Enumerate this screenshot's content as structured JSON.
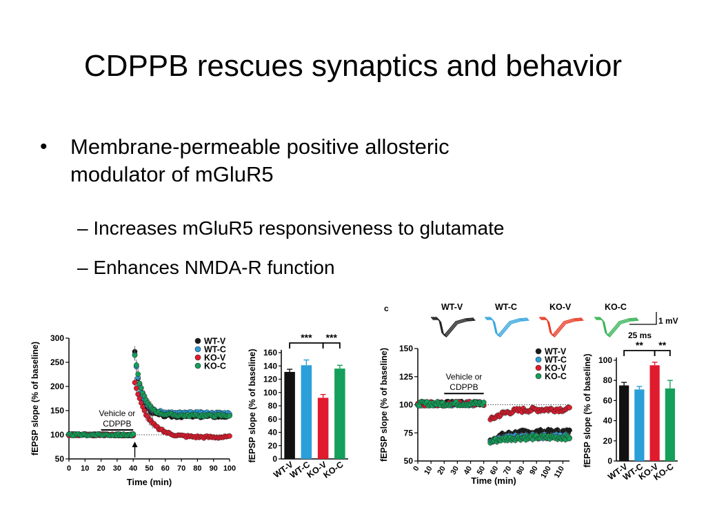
{
  "slide": {
    "title": "CDPPB rescues synaptics and behavior",
    "bullets": [
      {
        "text": "Membrane-permeable positive allosteric modulator of mGluR5",
        "line1": "Membrane-permeable positive allosteric",
        "line2": "modulator of mGluR5",
        "subs": [
          "Increases mGluR5 responsiveness to glutamate",
          "Enhances NMDA-R function"
        ]
      }
    ],
    "bullet_glyph": "•",
    "dash_glyph": "–"
  },
  "figure": {
    "panel_c_label": "c",
    "traces": {
      "labels": [
        "WT-V",
        "WT-C",
        "KO-V",
        "KO-C"
      ],
      "colors": [
        "#222222",
        "#3aa7dd",
        "#e8402a",
        "#3cb55a"
      ],
      "scale_voltage": "1 mV",
      "scale_time": "25 ms"
    },
    "groups": [
      "WT-V",
      "WT-C",
      "KO-V",
      "KO-C"
    ],
    "group_colors": [
      "#111111",
      "#2a9fd8",
      "#e01b2e",
      "#14a05a"
    ]
  },
  "chart_data": [
    {
      "type": "scatter",
      "ylabel": "fEPSP slope (% of baseline)",
      "xlabel": "Time (min)",
      "xlim": [
        0,
        100
      ],
      "ylim": [
        50,
        300
      ],
      "xticks": [
        0,
        10,
        20,
        30,
        40,
        50,
        60,
        70,
        80,
        90,
        100
      ],
      "yticks": [
        50,
        100,
        150,
        200,
        250,
        300
      ],
      "annotation": "Vehicle or CDPPB",
      "drug_window": [
        20,
        40
      ],
      "stimulus_x": 41,
      "baseline": 100,
      "legend": "top-right",
      "series": [
        {
          "name": "WT-V",
          "color": "#1a1a1a",
          "baseline": 100,
          "peak": 270,
          "steady": 138,
          "tau": 4
        },
        {
          "name": "WT-C",
          "color": "#2a9fd8",
          "baseline": 100,
          "peak": 268,
          "steady": 145,
          "tau": 4
        },
        {
          "name": "KO-V",
          "color": "#e01b2e",
          "baseline": 100,
          "peak": 210,
          "steady": 95,
          "tau": 8
        },
        {
          "name": "KO-C",
          "color": "#14a05a",
          "baseline": 100,
          "peak": 265,
          "steady": 140,
          "tau": 5
        }
      ]
    },
    {
      "type": "bar",
      "ylabel": "fEPSP slope (% of baseline)",
      "categories": [
        "WT-V",
        "WT-C",
        "KO-V",
        "KO-C"
      ],
      "values": [
        131,
        141,
        92,
        136
      ],
      "errors": [
        4,
        8,
        5,
        5
      ],
      "colors": [
        "#111111",
        "#2a9fd8",
        "#e01b2e",
        "#14a05a"
      ],
      "ylim": [
        0,
        160
      ],
      "yticks": [
        0,
        20,
        40,
        60,
        80,
        100,
        120,
        140,
        160
      ],
      "significance": [
        {
          "from": "WT-V",
          "to": "KO-V",
          "label": "***"
        },
        {
          "from": "KO-V",
          "to": "KO-C",
          "label": "***"
        }
      ]
    },
    {
      "type": "scatter",
      "ylabel": "fEPSP slope (% of baseline)",
      "xlabel": "Time (min)",
      "xlim": [
        0,
        115
      ],
      "ylim": [
        50,
        150
      ],
      "xticks": [
        0,
        10,
        20,
        30,
        40,
        50,
        60,
        70,
        80,
        90,
        100,
        110
      ],
      "yticks": [
        50,
        75,
        100,
        125,
        150
      ],
      "annotation": "Vehicle or CDPPB",
      "drug_window": [
        20,
        50
      ],
      "baseline": 100,
      "legend": "top-right",
      "series": [
        {
          "name": "WT-V",
          "color": "#1a1a1a",
          "baseline": 101,
          "dip": 68,
          "steady": 76
        },
        {
          "name": "WT-C",
          "color": "#2a9fd8",
          "baseline": 101,
          "dip": 66,
          "steady": 72
        },
        {
          "name": "KO-V",
          "color": "#e01b2e",
          "baseline": 101,
          "dip": 86,
          "steady": 96
        },
        {
          "name": "KO-C",
          "color": "#14a05a",
          "baseline": 101,
          "dip": 67,
          "steady": 71
        }
      ]
    },
    {
      "type": "bar",
      "ylabel": "fEPSP slope (% of baseline)",
      "categories": [
        "WT-V",
        "WT-C",
        "KO-V",
        "KO-C"
      ],
      "values": [
        75,
        71,
        95,
        72
      ],
      "errors": [
        3,
        3,
        3,
        8
      ],
      "colors": [
        "#111111",
        "#2a9fd8",
        "#e01b2e",
        "#14a05a"
      ],
      "ylim": [
        0,
        100
      ],
      "yticks": [
        0,
        20,
        40,
        60,
        80,
        100
      ],
      "significance": [
        {
          "from": "WT-V",
          "to": "KO-V",
          "label": "**"
        },
        {
          "from": "KO-V",
          "to": "KO-C",
          "label": "**"
        }
      ]
    }
  ]
}
